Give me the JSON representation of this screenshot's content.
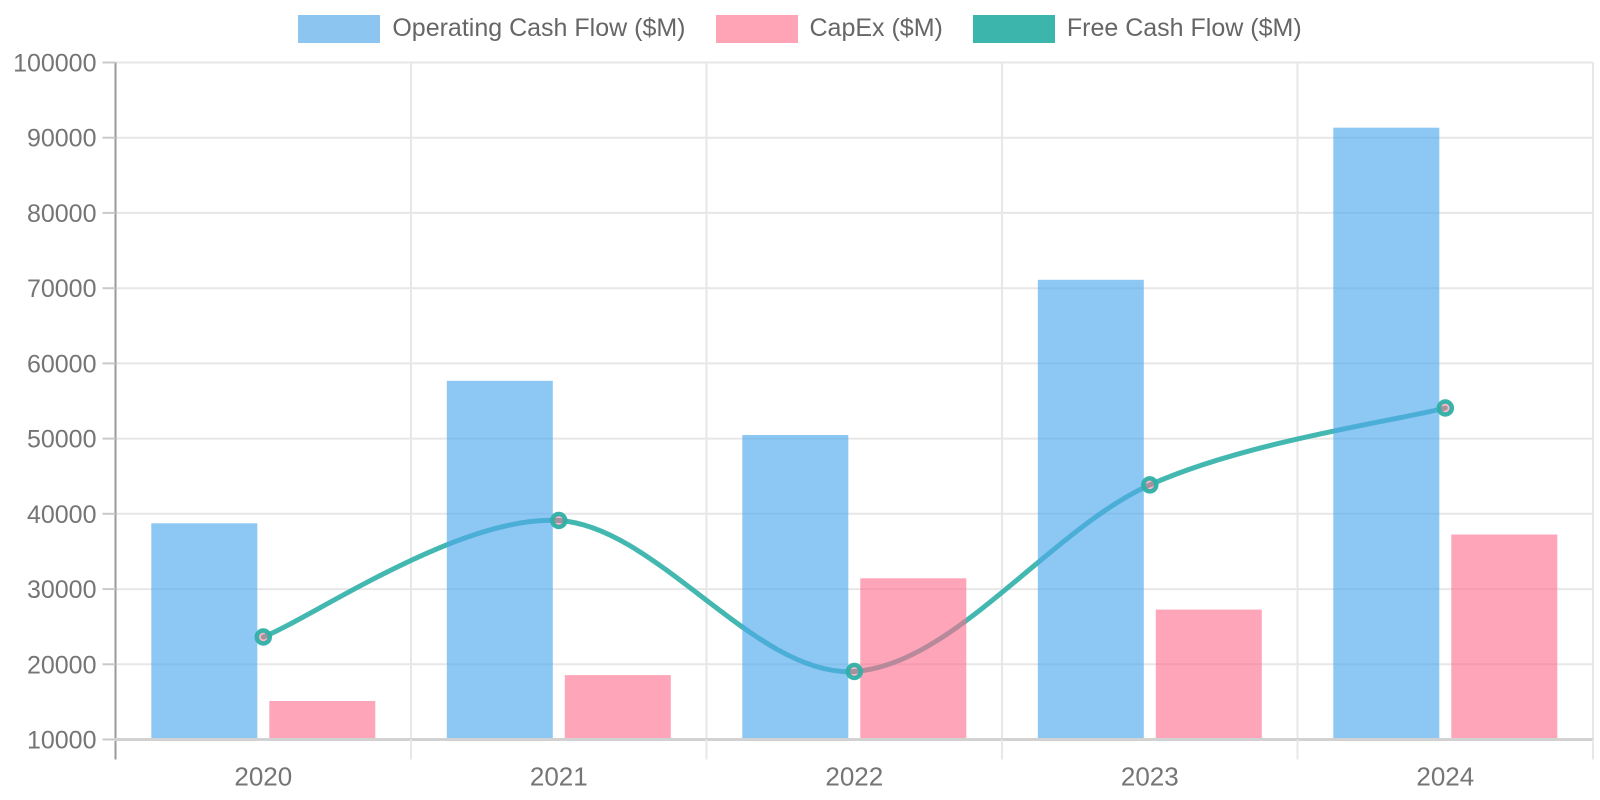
{
  "chart_data": {
    "type": "bar",
    "subtype": "combo-bar-line",
    "categories": [
      "2020",
      "2021",
      "2022",
      "2023",
      "2024"
    ],
    "series": [
      {
        "name": "Operating Cash Flow ($M)",
        "type": "bar",
        "legend_color": "#8cc5f0",
        "fill": "#50a9ed",
        "fill_opacity": 0.65,
        "values": [
          38747,
          57683,
          50475,
          71113,
          91328
        ]
      },
      {
        "name": "CapEx ($M)",
        "type": "bar",
        "legend_color": "#ffa3b7",
        "fill": "#ff6e8e",
        "fill_opacity": 0.62,
        "values": [
          15115,
          18567,
          31431,
          27266,
          37256
        ]
      },
      {
        "name": "Free Cash Flow ($M)",
        "type": "line",
        "legend_color": "#3cb5ac",
        "stroke": "#2fb0a7",
        "stroke_opacity": 0.9,
        "marker_fill": "#ff6e8e",
        "marker_fill_opacity": 0.5,
        "values": [
          23632,
          39116,
          19044,
          43847,
          54072
        ]
      }
    ],
    "title": "",
    "xlabel": "",
    "ylabel": "",
    "ylim": [
      10000,
      100000
    ],
    "y_ticks": [
      10000,
      20000,
      30000,
      40000,
      50000,
      60000,
      70000,
      80000,
      90000,
      100000
    ],
    "grid": true,
    "legend_position": "top",
    "grid_color": "#e7e7e7",
    "y_axis_color": "#999999",
    "x_axis_color": "#d2d2d2",
    "tick_color": "#c9c9c9",
    "tick_label_color": "#757575"
  }
}
